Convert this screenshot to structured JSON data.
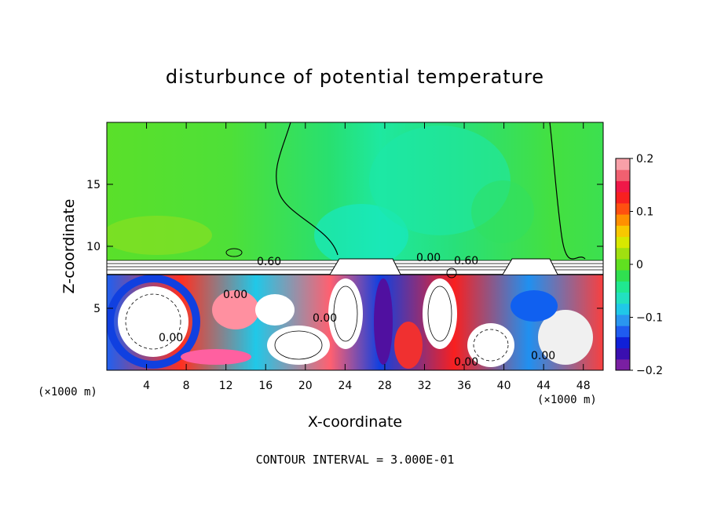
{
  "chart_data": {
    "type": "heatmap",
    "title": "disturbunce of potential temperature",
    "xlabel": "X-coordinate",
    "ylabel": "Z-coordinate",
    "x_unit": "(×1000 m)",
    "z_unit": "(×1000 m)",
    "xlim": [
      0,
      50
    ],
    "ylim": [
      0,
      20
    ],
    "x_ticks": [
      "4",
      "8",
      "12",
      "16",
      "20",
      "24",
      "28",
      "32",
      "36",
      "40",
      "44",
      "48"
    ],
    "y_ticks": [
      "5",
      "10",
      "15"
    ],
    "colorbar": {
      "ticks": [
        "0.2",
        "0.1",
        "0",
        "−0.1",
        "−0.2"
      ],
      "range": [
        -0.2,
        0.2
      ],
      "colors": [
        "#7a1fa2",
        "#3a0fb0",
        "#1020d8",
        "#1f5cf0",
        "#2a96f0",
        "#20c8e8",
        "#22e0c0",
        "#20e890",
        "#30e050",
        "#60e020",
        "#a0e010",
        "#d8e800",
        "#f8c800",
        "#ff9000",
        "#ff5010",
        "#f82020",
        "#f01848",
        "#f06070",
        "#f8a0a8"
      ]
    },
    "contour_labels": [
      "0.60",
      "0.00",
      "0.60",
      "0.00",
      "0.00",
      "0.00",
      "0.00",
      "0.00"
    ],
    "contour_interval_note": "CONTOUR INTERVAL = 3.000E-01"
  }
}
